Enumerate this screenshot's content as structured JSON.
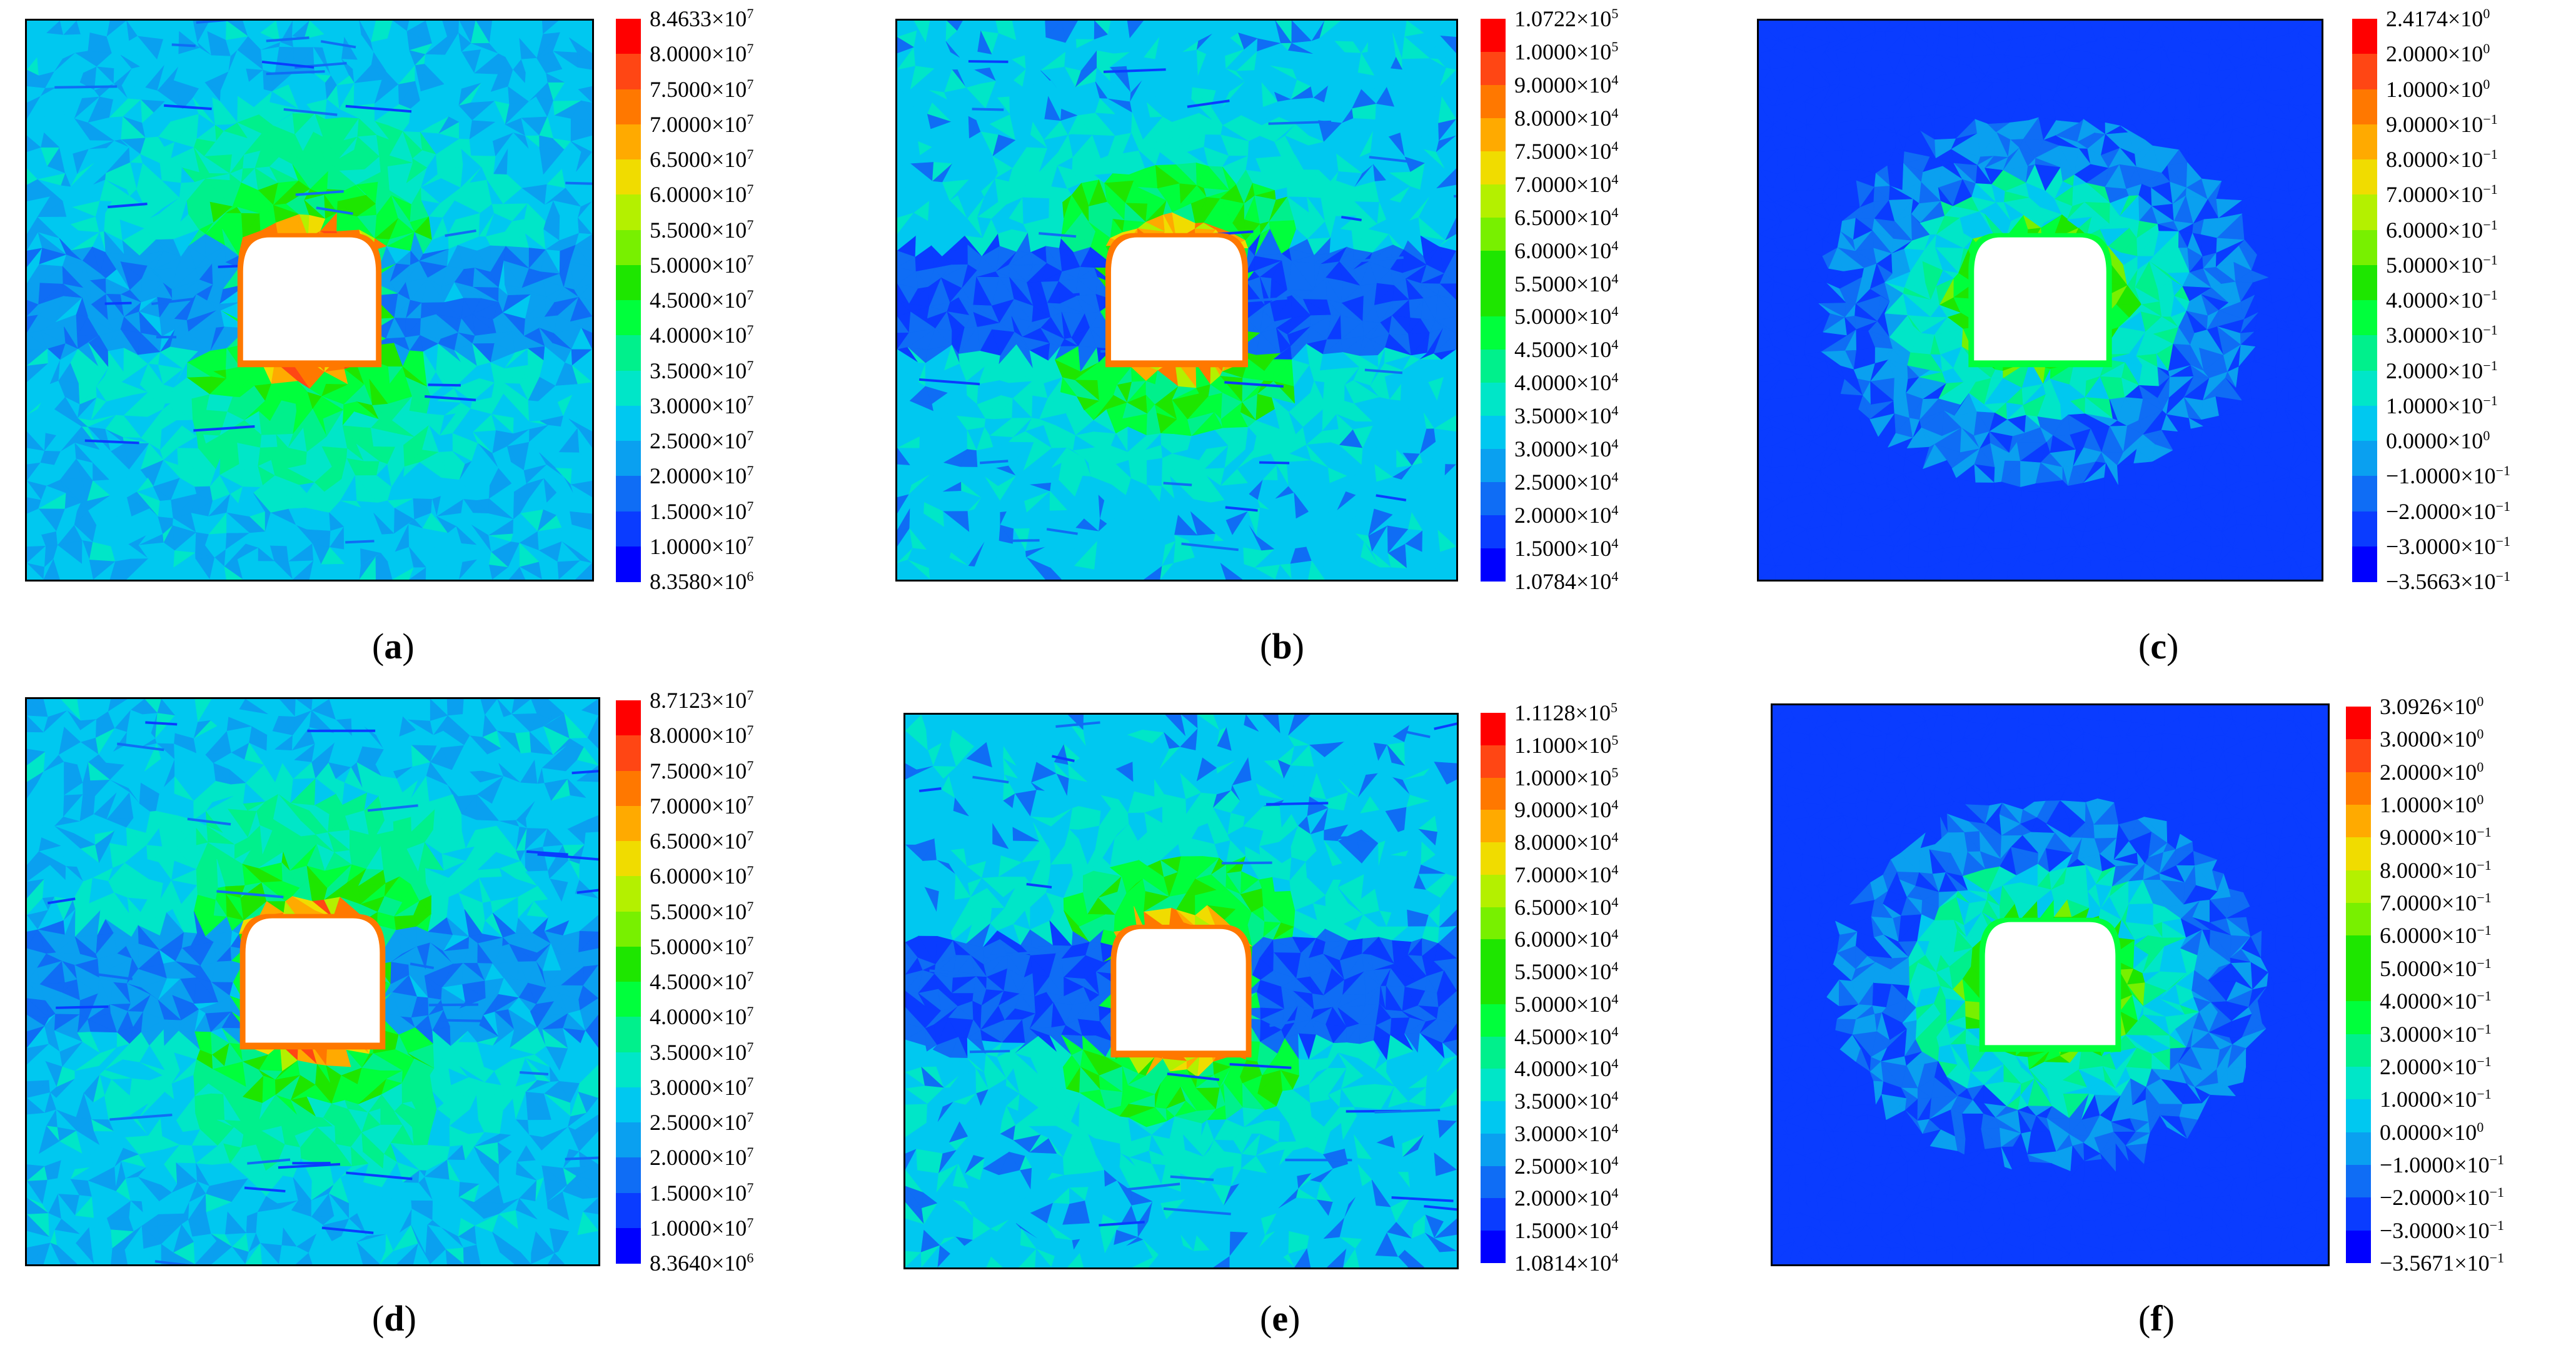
{
  "colors": [
    "#0000ff",
    "#0a3cff",
    "#0f6df5",
    "#0aa0f0",
    "#00c8f0",
    "#00e6c8",
    "#00f08c",
    "#00ff3c",
    "#1ee600",
    "#78f000",
    "#b4f000",
    "#f0dc00",
    "#ffaa00",
    "#ff7800",
    "#ff4614",
    "#ff0000"
  ],
  "chart_data": [
    {
      "type": "heatmap",
      "panel_label": "a",
      "colorbar_labels": [
        [
          "8.4633",
          "7"
        ],
        [
          "8.0000",
          "7"
        ],
        [
          "7.5000",
          "7"
        ],
        [
          "7.0000",
          "7"
        ],
        [
          "6.5000",
          "7"
        ],
        [
          "6.0000",
          "7"
        ],
        [
          "5.5000",
          "7"
        ],
        [
          "5.0000",
          "7"
        ],
        [
          "4.5000",
          "7"
        ],
        [
          "4.0000",
          "7"
        ],
        [
          "3.5000",
          "7"
        ],
        [
          "3.0000",
          "7"
        ],
        [
          "2.5000",
          "7"
        ],
        [
          "2.0000",
          "7"
        ],
        [
          "1.5000",
          "7"
        ],
        [
          "1.0000",
          "7"
        ],
        [
          "8.3580",
          "6"
        ]
      ],
      "range": [
        8358000,
        84633000
      ]
    },
    {
      "type": "heatmap",
      "panel_label": "b",
      "colorbar_labels": [
        [
          "1.0722",
          "5"
        ],
        [
          "1.0000",
          "5"
        ],
        [
          "9.0000",
          "4"
        ],
        [
          "8.0000",
          "4"
        ],
        [
          "7.5000",
          "4"
        ],
        [
          "7.0000",
          "4"
        ],
        [
          "6.5000",
          "4"
        ],
        [
          "6.0000",
          "4"
        ],
        [
          "5.5000",
          "4"
        ],
        [
          "5.0000",
          "4"
        ],
        [
          "4.5000",
          "4"
        ],
        [
          "4.0000",
          "4"
        ],
        [
          "3.5000",
          "4"
        ],
        [
          "3.0000",
          "4"
        ],
        [
          "2.5000",
          "4"
        ],
        [
          "2.0000",
          "4"
        ],
        [
          "1.5000",
          "4"
        ],
        [
          "1.0784",
          "4"
        ]
      ],
      "range": [
        10784,
        107220
      ]
    },
    {
      "type": "heatmap",
      "panel_label": "c",
      "colorbar_labels": [
        [
          "2.4174",
          "0"
        ],
        [
          "2.0000",
          "0"
        ],
        [
          "1.0000",
          "0"
        ],
        [
          "9.0000",
          "−1"
        ],
        [
          "8.0000",
          "−1"
        ],
        [
          "7.0000",
          "−1"
        ],
        [
          "6.0000",
          "−1"
        ],
        [
          "5.0000",
          "−1"
        ],
        [
          "4.0000",
          "−1"
        ],
        [
          "3.0000",
          "−1"
        ],
        [
          "2.0000",
          "−1"
        ],
        [
          "1.0000",
          "−1"
        ],
        [
          "0.0000",
          "0"
        ],
        [
          "−1.0000",
          "−1"
        ],
        [
          "−2.0000",
          "−1"
        ],
        [
          "−3.0000",
          "−1"
        ],
        [
          "−3.5663",
          "−1"
        ]
      ],
      "range": [
        -0.35663,
        2.4174
      ]
    },
    {
      "type": "heatmap",
      "panel_label": "d",
      "colorbar_labels": [
        [
          "8.7123",
          "7"
        ],
        [
          "8.0000",
          "7"
        ],
        [
          "7.5000",
          "7"
        ],
        [
          "7.0000",
          "7"
        ],
        [
          "6.5000",
          "7"
        ],
        [
          "6.0000",
          "7"
        ],
        [
          "5.5000",
          "7"
        ],
        [
          "5.0000",
          "7"
        ],
        [
          "4.5000",
          "7"
        ],
        [
          "4.0000",
          "7"
        ],
        [
          "3.5000",
          "7"
        ],
        [
          "3.0000",
          "7"
        ],
        [
          "2.5000",
          "7"
        ],
        [
          "2.0000",
          "7"
        ],
        [
          "1.5000",
          "7"
        ],
        [
          "1.0000",
          "7"
        ],
        [
          "8.3640",
          "6"
        ]
      ],
      "range": [
        8364000,
        87123000
      ]
    },
    {
      "type": "heatmap",
      "panel_label": "e",
      "colorbar_labels": [
        [
          "1.1128",
          "5"
        ],
        [
          "1.1000",
          "5"
        ],
        [
          "1.0000",
          "5"
        ],
        [
          "9.0000",
          "4"
        ],
        [
          "8.0000",
          "4"
        ],
        [
          "7.0000",
          "4"
        ],
        [
          "6.5000",
          "4"
        ],
        [
          "6.0000",
          "4"
        ],
        [
          "5.5000",
          "4"
        ],
        [
          "5.0000",
          "4"
        ],
        [
          "4.5000",
          "4"
        ],
        [
          "4.0000",
          "4"
        ],
        [
          "3.5000",
          "4"
        ],
        [
          "3.0000",
          "4"
        ],
        [
          "2.5000",
          "4"
        ],
        [
          "2.0000",
          "4"
        ],
        [
          "1.5000",
          "4"
        ],
        [
          "1.0814",
          "4"
        ]
      ],
      "range": [
        10814,
        111280
      ]
    },
    {
      "type": "heatmap",
      "panel_label": "f",
      "colorbar_labels": [
        [
          "3.0926",
          "0"
        ],
        [
          "3.0000",
          "0"
        ],
        [
          "2.0000",
          "0"
        ],
        [
          "1.0000",
          "0"
        ],
        [
          "9.0000",
          "−1"
        ],
        [
          "8.0000",
          "−1"
        ],
        [
          "7.0000",
          "−1"
        ],
        [
          "6.0000",
          "−1"
        ],
        [
          "5.0000",
          "−1"
        ],
        [
          "4.0000",
          "−1"
        ],
        [
          "3.0000",
          "−1"
        ],
        [
          "2.0000",
          "−1"
        ],
        [
          "1.0000",
          "−1"
        ],
        [
          "0.0000",
          "0"
        ],
        [
          "−1.0000",
          "−1"
        ],
        [
          "−2.0000",
          "−1"
        ],
        [
          "−3.0000",
          "−1"
        ],
        [
          "−3.5671",
          "−1"
        ]
      ],
      "range": [
        -0.35671,
        3.0926
      ]
    }
  ]
}
